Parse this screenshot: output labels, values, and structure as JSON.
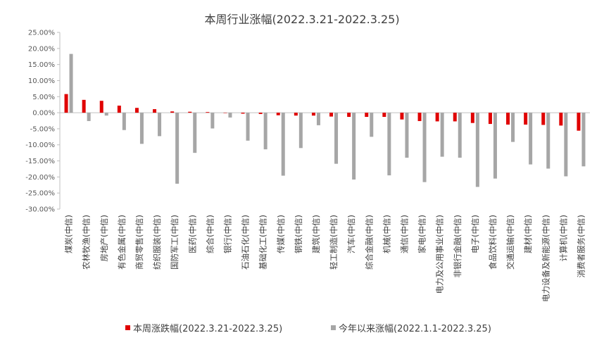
{
  "chart_data": {
    "type": "bar",
    "title": "本周行业涨幅(2022.3.21-2022.3.25)",
    "categories": [
      "煤炭(中信)",
      "农林牧渔(中信)",
      "房地产(中信)",
      "有色金属(中信)",
      "商贸零售(中信)",
      "纺织服装(中信)",
      "国防军工(中信)",
      "医药(中信)",
      "综合(中信)",
      "银行(中信)",
      "石油石化(中信)",
      "基础化工(中信)",
      "传媒(中信)",
      "钢铁(中信)",
      "建筑(中信)",
      "轻工制造(中信)",
      "汽车(中信)",
      "综合金融(中信)",
      "机械(中信)",
      "通信(中信)",
      "家电(中信)",
      "电力及公用事业(中信)",
      "非银行金融(中信)",
      "电子(中信)",
      "食品饮料(中信)",
      "交通运输(中信)",
      "建材(中信)",
      "电力设备及新能源(中信)",
      "计算机(中信)",
      "消费者服务(中信)"
    ],
    "series": [
      {
        "name": "本周涨跌幅(2022.3.21-2022.3.25)",
        "color": "#e00000",
        "values": [
          5.8,
          4.0,
          3.7,
          2.2,
          1.5,
          1.1,
          0.4,
          0.3,
          0.2,
          0.0,
          -0.3,
          -0.4,
          -0.8,
          -0.9,
          -0.9,
          -1.2,
          -1.3,
          -1.3,
          -1.3,
          -2.1,
          -2.6,
          -2.7,
          -2.7,
          -3.2,
          -3.5,
          -3.7,
          -3.7,
          -3.8,
          -4.0,
          -5.6
        ]
      },
      {
        "name": "今年以来涨幅(2022.1.1-2022.3.25)",
        "color": "#a6a6a6",
        "values": [
          18.3,
          -2.6,
          -0.9,
          -5.4,
          -9.7,
          -7.3,
          -22.1,
          -12.5,
          -4.9,
          -1.5,
          -8.7,
          -11.4,
          -19.6,
          -11.0,
          -3.9,
          -15.9,
          -20.8,
          -7.5,
          -19.5,
          -14.0,
          -21.6,
          -13.7,
          -14.0,
          -23.1,
          -20.5,
          -9.1,
          -16.1,
          -17.4,
          -19.8,
          -16.7
        ]
      }
    ],
    "ylim": [
      -30,
      25
    ],
    "yticks": [
      "25.00%",
      "20.00%",
      "15.00%",
      "10.00%",
      "5.00%",
      "0.00%",
      "-5.00%",
      "-10.00%",
      "-15.00%",
      "-20.00%",
      "-25.00%",
      "-30.00%"
    ],
    "grid": false,
    "legend_position": "bottom"
  }
}
